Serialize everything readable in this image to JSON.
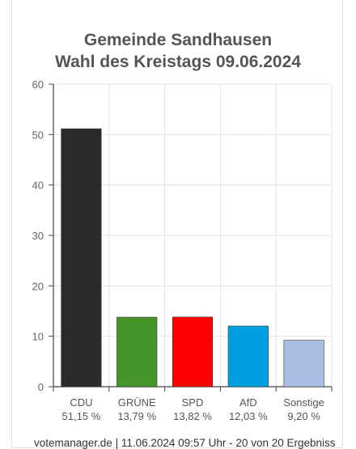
{
  "chart_data": {
    "type": "bar",
    "title": "Gemeinde Sandhausen",
    "subtitle": "Wahl des Kreistags 09.06.2024",
    "categories": [
      "CDU",
      "GRÜNE",
      "SPD",
      "AfD",
      "Sonstige"
    ],
    "value_labels": [
      "51,15 %",
      "13,79 %",
      "13,82 %",
      "12,03 %",
      "9,20 %"
    ],
    "values": [
      51.15,
      13.79,
      13.82,
      12.03,
      9.2
    ],
    "colors": [
      "#2b2b2b",
      "#46962b",
      "#ff0000",
      "#009ee0",
      "#aabde3"
    ],
    "ylim": [
      0,
      60
    ],
    "yticks": [
      0,
      10,
      20,
      30,
      40,
      50,
      60
    ],
    "grid": true,
    "xlabel": "",
    "ylabel": ""
  },
  "footer": "votemanager.de | 11.06.2024 09:57 Uhr - 20 von 20 Ergebnissen"
}
